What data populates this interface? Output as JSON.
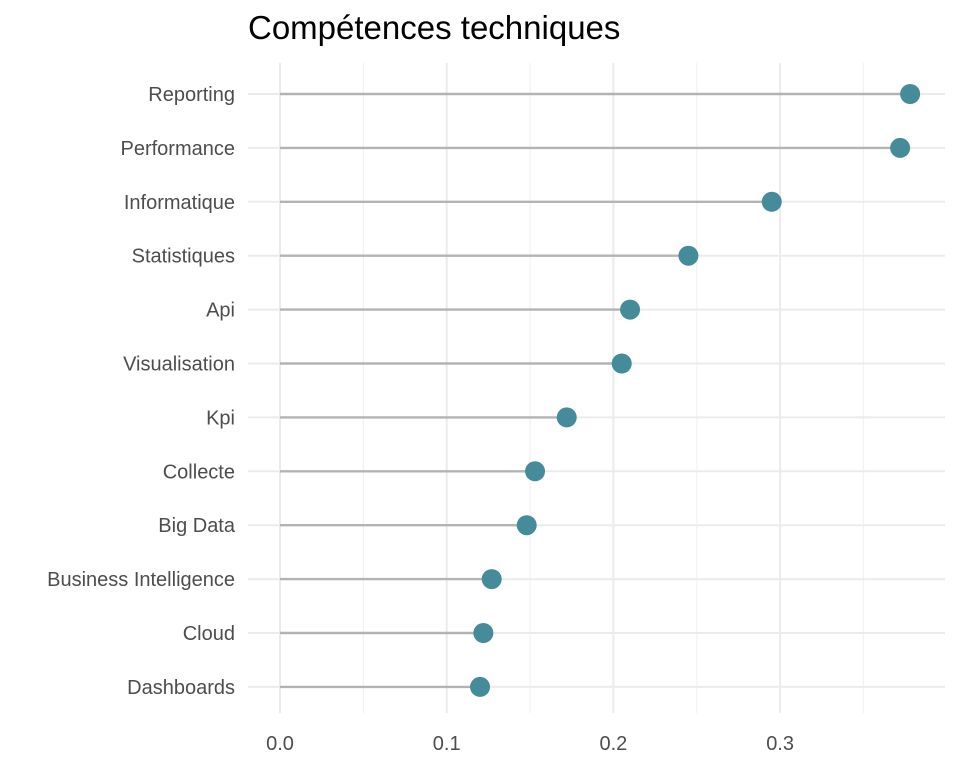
{
  "chart_data": {
    "type": "lollipop",
    "title": "Compétences techniques",
    "xlabel": "",
    "ylabel": "",
    "xlim": [
      -0.022,
      0.3975
    ],
    "xticks": [
      0.0,
      0.1,
      0.2,
      0.3
    ],
    "xtick_labels": [
      "0.0",
      "0.1",
      "0.2",
      "0.3"
    ],
    "grid": true,
    "categories": [
      "Reporting",
      "Performance",
      "Informatique",
      "Statistiques",
      "Api",
      "Visualisation",
      "Kpi",
      "Collecte",
      "Big Data",
      "Business Intelligence",
      "Cloud",
      "Dashboards"
    ],
    "values": [
      0.378,
      0.372,
      0.295,
      0.245,
      0.21,
      0.205,
      0.172,
      0.153,
      0.148,
      0.127,
      0.122,
      0.12
    ],
    "colors": {
      "point": "#458b9a",
      "stem": "#b3b3b3",
      "grid_major": "#ebebeb",
      "grid_minor": "#f2f2f2"
    }
  }
}
